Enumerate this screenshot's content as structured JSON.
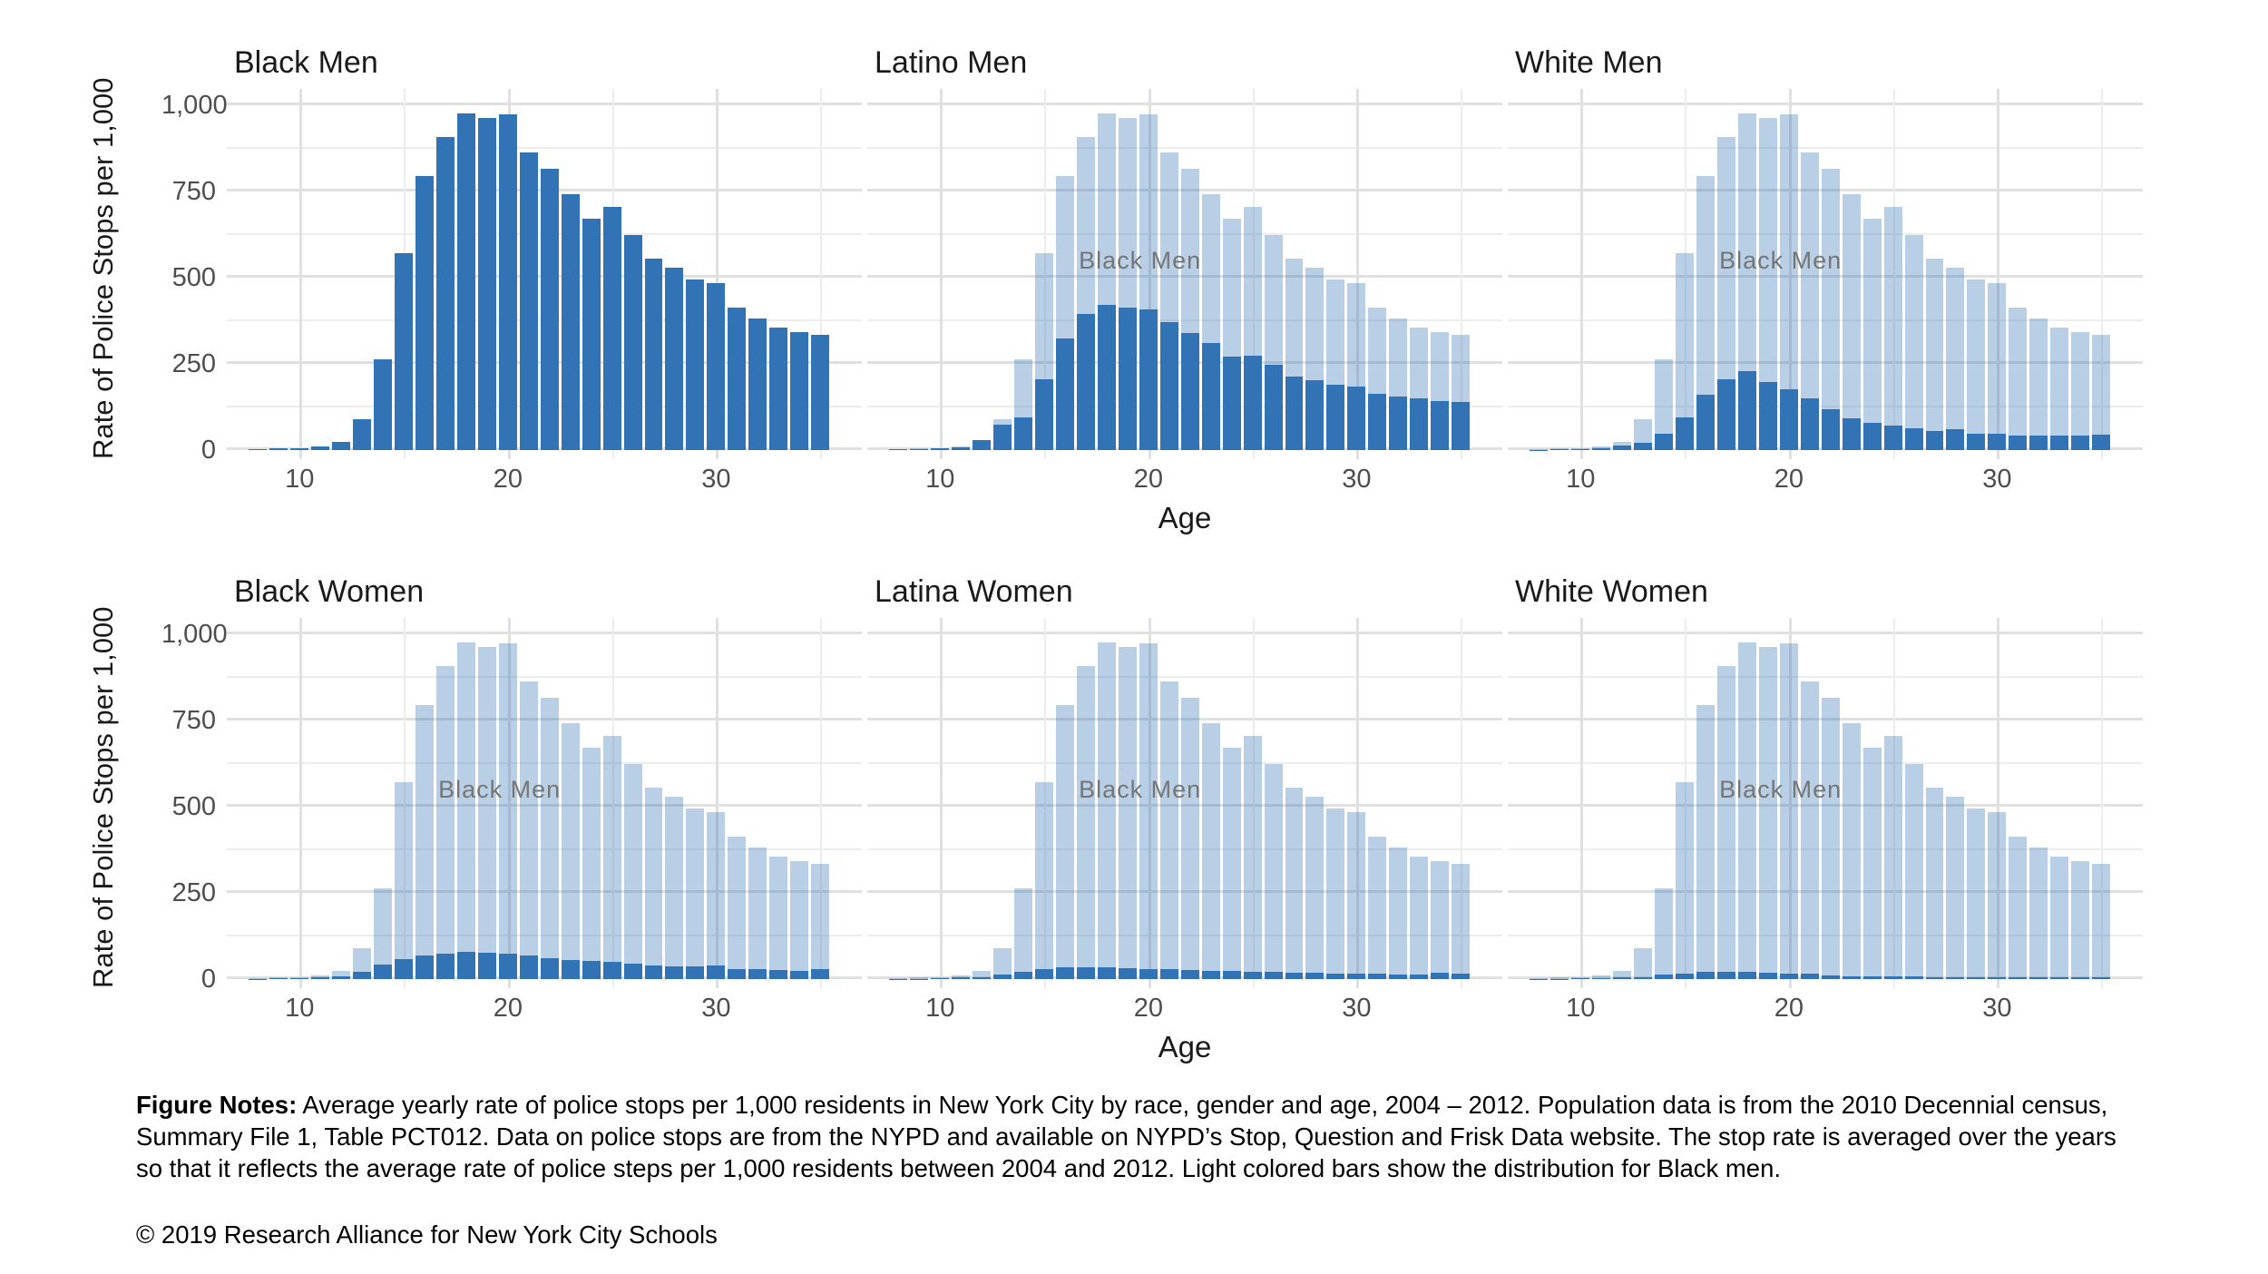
{
  "figure": {
    "notes_label": "Figure Notes:",
    "notes_text": " Average yearly rate of police stops per 1,000 residents in New York City by race, gender and age, 2004 – 2012. Population data is from the 2010 Decennial census, Summary File 1, Table PCT012. Data on police stops are from the NYPD and available on NYPD’s Stop, Question and Frisk Data website. The stop rate is averaged over the years so that it reflects the average rate of police steps per 1,000 residents between 2004 and 2012. Light colored bars show the distribution for Black men.",
    "copyright": "© 2019 Research Alliance for New York City Schools"
  },
  "chart_data": {
    "type": "bar",
    "title": "",
    "xlabel": "Age",
    "ylabel": "Rate of Police Stops per 1,000",
    "x_ticks": [
      10,
      20,
      30
    ],
    "x_minor_ticks": [
      15,
      25,
      35
    ],
    "y_ticks": [
      0,
      250,
      500,
      750,
      1000
    ],
    "y_minor_ticks": [
      125,
      375,
      625,
      875
    ],
    "ylim": [
      0,
      1000
    ],
    "x_domain": [
      6.5,
      37
    ],
    "grid": true,
    "legend_position": "none",
    "ages": [
      8,
      9,
      10,
      11,
      12,
      13,
      14,
      15,
      16,
      17,
      18,
      19,
      20,
      21,
      22,
      23,
      24,
      25,
      26,
      27,
      28,
      29,
      30,
      31,
      32,
      33,
      34,
      35
    ],
    "reference": {
      "name": "Black Men",
      "label": "Black Men",
      "values": [
        3,
        4,
        6,
        10,
        25,
        90,
        263,
        570,
        795,
        908,
        976,
        964,
        975,
        863,
        816,
        741,
        670,
        706,
        625,
        554,
        528,
        494,
        483,
        414,
        381,
        354,
        341,
        335
      ]
    },
    "panels": [
      {
        "title": "Black Men",
        "show_reference_label": false,
        "values": [
          3,
          4,
          6,
          10,
          25,
          90,
          263,
          570,
          795,
          908,
          976,
          964,
          975,
          863,
          816,
          741,
          670,
          706,
          625,
          554,
          528,
          494,
          483,
          414,
          381,
          354,
          341,
          335
        ]
      },
      {
        "title": "Latino Men",
        "show_reference_label": true,
        "values": [
          2,
          3,
          4,
          8,
          28,
          75,
          95,
          205,
          325,
          395,
          420,
          412,
          408,
          372,
          340,
          310,
          272,
          275,
          247,
          212,
          203,
          190,
          185,
          162,
          155,
          150,
          141,
          139
        ]
      },
      {
        "title": "White Men",
        "show_reference_label": true,
        "values": [
          1,
          2,
          3,
          5,
          12,
          20,
          48,
          95,
          160,
          205,
          228,
          198,
          176,
          150,
          118,
          93,
          80,
          71,
          63,
          56,
          60,
          48,
          47,
          42,
          41,
          41,
          41,
          44
        ]
      },
      {
        "title": "Black Women",
        "show_reference_label": true,
        "values": [
          1,
          2,
          3,
          5,
          8,
          20,
          42,
          58,
          68,
          75,
          80,
          76,
          75,
          68,
          60,
          54,
          52,
          50,
          45,
          40,
          38,
          36,
          40,
          28,
          28,
          26,
          24,
          30
        ]
      },
      {
        "title": "Latina Women",
        "show_reference_label": true,
        "values": [
          1,
          1,
          2,
          4,
          6,
          12,
          22,
          28,
          35,
          35,
          35,
          32,
          30,
          30,
          26,
          25,
          24,
          22,
          20,
          18,
          18,
          17,
          16,
          15,
          14,
          14,
          18,
          16
        ]
      },
      {
        "title": "White Women",
        "show_reference_label": true,
        "values": [
          1,
          1,
          2,
          3,
          4,
          6,
          12,
          16,
          20,
          21,
          20,
          18,
          16,
          15,
          10,
          8,
          8,
          8,
          7,
          6,
          6,
          6,
          6,
          5,
          5,
          5,
          5,
          6
        ]
      }
    ],
    "colors": {
      "dark_bar": "#3173B4",
      "light_bar_rgba": "rgba(49,114,181,0.34)",
      "grid_major": "#E0E0E0",
      "grid_minor": "#EDEDED",
      "tick_text": "#4D4D4D",
      "annotation_text": "#757575"
    }
  }
}
